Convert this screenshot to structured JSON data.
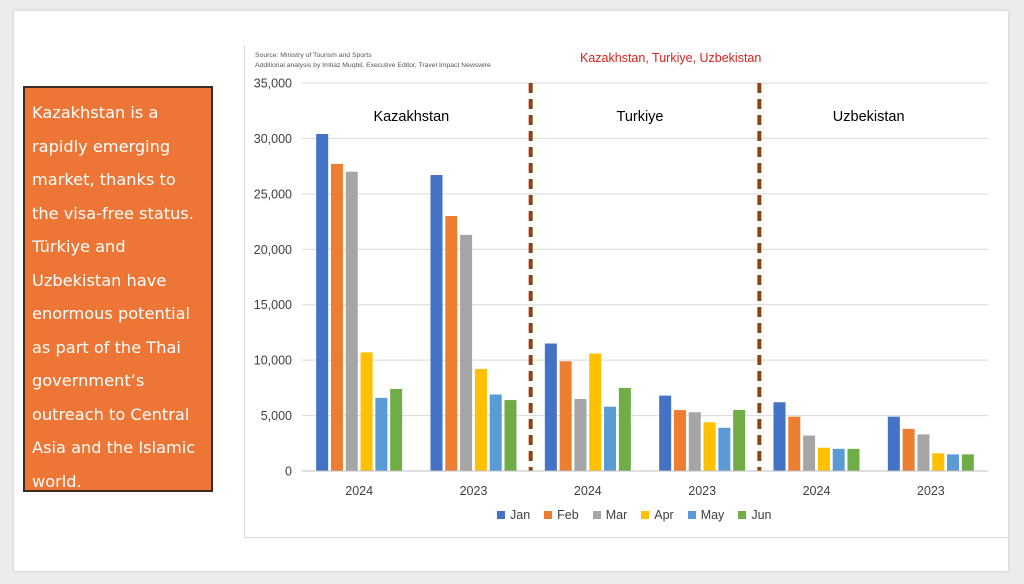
{
  "callout": {
    "text": "Kazakhstan is a rapidly emerging market, thanks to the visa-free status. Türkiye and Uzbekistan have enormous potential as part of the Thai government’s outreach to Central Asia and the Islamic world."
  },
  "source": {
    "line1": "Source: Ministry of Tourism and Sports",
    "line2": "Additional analysis by Imtiaz Muqbil, Executive Editor, Travel Impact Newswire"
  },
  "chart_data": {
    "type": "bar",
    "title": "Kazakhstan, Turkiye, Uzbekistan",
    "xlabel": "",
    "ylabel": "",
    "ylim": [
      0,
      35000
    ],
    "yticks": [
      "0",
      "5,000",
      "10,000",
      "15,000",
      "20,000",
      "25,000",
      "30,000",
      "35,000"
    ],
    "grid": true,
    "legend_position": "bottom",
    "series": [
      {
        "name": "Jan",
        "color": "#4472c4"
      },
      {
        "name": "Feb",
        "color": "#ed7d31"
      },
      {
        "name": "Mar",
        "color": "#a5a5a5"
      },
      {
        "name": "Apr",
        "color": "#ffc000"
      },
      {
        "name": "May",
        "color": "#5b9bd5"
      },
      {
        "name": "Jun",
        "color": "#70ad47"
      }
    ],
    "groups": [
      {
        "name": "Kazakhstan",
        "categories": [
          {
            "label": "2024",
            "values": [
              30400,
              27700,
              27000,
              10700,
              6600,
              7400
            ]
          },
          {
            "label": "2023",
            "values": [
              26700,
              23000,
              21300,
              9200,
              6900,
              6400
            ]
          }
        ]
      },
      {
        "name": "Turkiye",
        "categories": [
          {
            "label": "2024",
            "values": [
              11500,
              9900,
              6500,
              10600,
              5800,
              7500
            ]
          },
          {
            "label": "2023",
            "values": [
              6800,
              5500,
              5300,
              4400,
              3900,
              5500
            ]
          }
        ]
      },
      {
        "name": "Uzbekistan",
        "categories": [
          {
            "label": "2024",
            "values": [
              6200,
              4900,
              3200,
              2100,
              2000,
              2000
            ]
          },
          {
            "label": "2023",
            "values": [
              4900,
              3800,
              3300,
              1600,
              1500,
              1500
            ]
          }
        ]
      }
    ]
  }
}
